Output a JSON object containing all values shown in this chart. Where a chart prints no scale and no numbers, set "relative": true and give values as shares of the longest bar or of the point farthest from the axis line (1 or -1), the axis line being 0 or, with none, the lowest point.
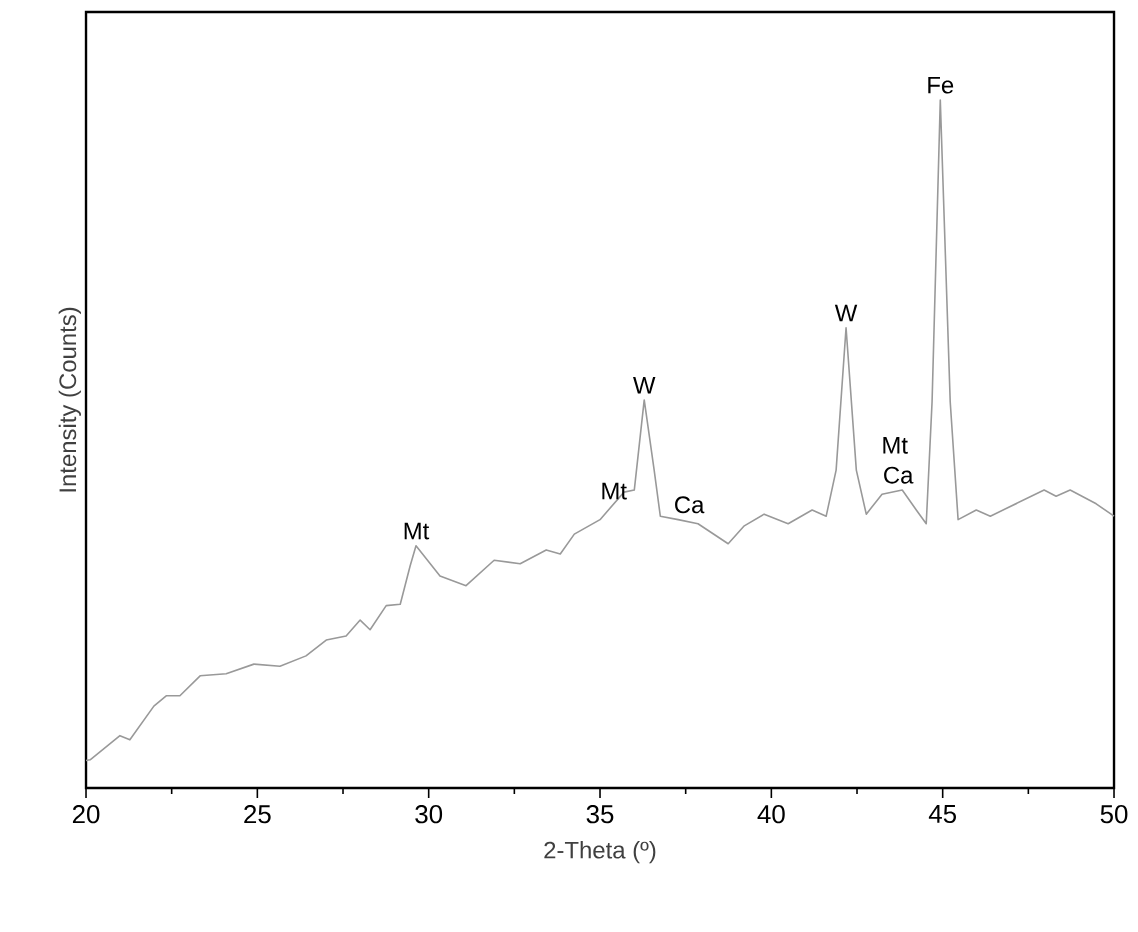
{
  "chart_data": {
    "type": "line",
    "xlabel": "2-Theta (º)",
    "ylabel": "Intensity (Counts)",
    "relative": true,
    "tick_labels": "x",
    "color": "#999999",
    "marker": "none",
    "line_style": "solid",
    "xlim": [
      20,
      50
    ],
    "xticks": [
      20,
      25,
      30,
      35,
      40,
      45,
      50
    ],
    "x": [
      20.0,
      20.12,
      20.99,
      21.28,
      21.98,
      22.34,
      22.74,
      23.33,
      24.09,
      24.9,
      25.66,
      26.42,
      27.01,
      27.59,
      28.0,
      28.29,
      28.76,
      29.17,
      29.46,
      29.63,
      30.33,
      31.09,
      31.91,
      32.67,
      33.43,
      33.84,
      34.25,
      35.0,
      35.7,
      36.0,
      36.29,
      36.58,
      36.76,
      37.28,
      37.86,
      38.74,
      39.21,
      39.79,
      40.49,
      41.19,
      41.6,
      41.89,
      42.18,
      42.48,
      42.77,
      43.23,
      43.82,
      44.23,
      44.52,
      44.69,
      44.93,
      45.22,
      45.45,
      45.98,
      46.39,
      47.96,
      48.31,
      48.72,
      49.48,
      50.0
    ],
    "values": [
      0.04,
      0.041,
      0.076,
      0.07,
      0.119,
      0.134,
      0.134,
      0.163,
      0.166,
      0.18,
      0.177,
      0.192,
      0.215,
      0.221,
      0.244,
      0.23,
      0.265,
      0.267,
      0.323,
      0.352,
      0.308,
      0.294,
      0.331,
      0.326,
      0.346,
      0.34,
      0.369,
      0.39,
      0.43,
      0.433,
      0.564,
      0.462,
      0.395,
      0.39,
      0.384,
      0.355,
      0.381,
      0.398,
      0.384,
      0.404,
      0.395,
      0.462,
      0.669,
      0.462,
      0.398,
      0.427,
      0.433,
      0.404,
      0.384,
      0.561,
      1.0,
      0.561,
      0.39,
      0.404,
      0.395,
      0.433,
      0.424,
      0.433,
      0.413,
      0.395
    ],
    "annotations": [
      {
        "text": "Mt",
        "x": 29.63,
        "y": 0.352
      },
      {
        "text": "Mt",
        "x": 35.4,
        "y": 0.41
      },
      {
        "text": "W",
        "x": 36.29,
        "y": 0.564
      },
      {
        "text": "Ca",
        "x": 37.6,
        "y": 0.39
      },
      {
        "text": "W",
        "x": 42.18,
        "y": 0.669
      },
      {
        "text": "Ca",
        "x": 43.7,
        "y": 0.433
      },
      {
        "text": "Mt",
        "x": 43.6,
        "y": 0.433
      },
      {
        "text": "Fe",
        "x": 44.93,
        "y": 1.0
      }
    ]
  }
}
